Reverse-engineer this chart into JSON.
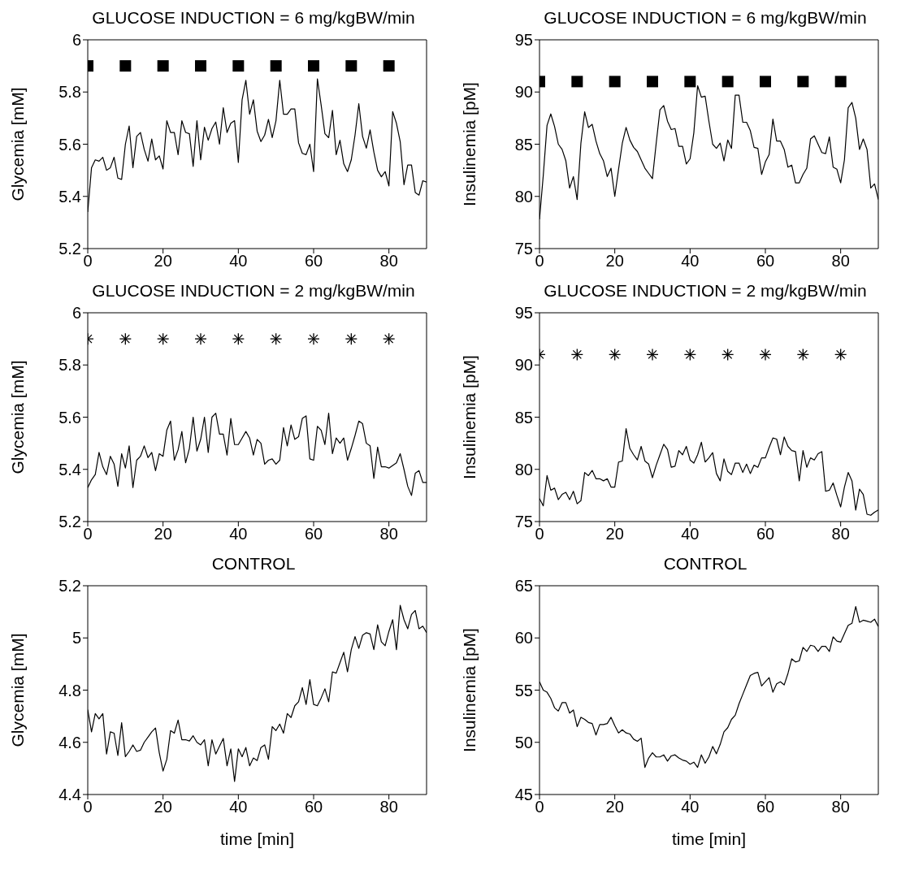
{
  "chart_data": [
    {
      "type": "line",
      "title": "GLUCOSE INDUCTION = 6 mg/kgBW/min",
      "ylabel": "Glycemia [mM]",
      "xlim": [
        0,
        90
      ],
      "xticks": [
        0,
        20,
        40,
        60,
        80
      ],
      "ylim": [
        5.2,
        6
      ],
      "yticks": [
        5.2,
        5.4,
        5.6,
        5.8,
        6
      ],
      "x": [
        0,
        1,
        2,
        3,
        4,
        5,
        6,
        7,
        8,
        9,
        10,
        11,
        12,
        13,
        14,
        15,
        16,
        17,
        18,
        19,
        20,
        21,
        22,
        23,
        24,
        25,
        26,
        27,
        28,
        29,
        30,
        31,
        32,
        33,
        34,
        35,
        36,
        37,
        38,
        39,
        40,
        41,
        42,
        43,
        44,
        45,
        46,
        47,
        48,
        49,
        50,
        51,
        52,
        53,
        54,
        55,
        56,
        57,
        58,
        59,
        60,
        61,
        62,
        63,
        64,
        65,
        66,
        67,
        68,
        69,
        70,
        71,
        72,
        73,
        74,
        75,
        76,
        77,
        78,
        79,
        80,
        81,
        82,
        83,
        84,
        85,
        86,
        87,
        88,
        89,
        90
      ],
      "series": [
        {
          "color": "#000000",
          "values": [
            5.34,
            5.51,
            5.54,
            5.535,
            5.55,
            5.5,
            5.51,
            5.55,
            5.47,
            5.465,
            5.6,
            5.67,
            5.51,
            5.63,
            5.645,
            5.58,
            5.535,
            5.62,
            5.54,
            5.555,
            5.505,
            5.69,
            5.645,
            5.645,
            5.56,
            5.69,
            5.645,
            5.64,
            5.515,
            5.69,
            5.54,
            5.665,
            5.615,
            5.66,
            5.685,
            5.6,
            5.74,
            5.645,
            5.68,
            5.69,
            5.53,
            5.77,
            5.845,
            5.715,
            5.77,
            5.65,
            5.61,
            5.635,
            5.695,
            5.625,
            5.69,
            5.845,
            5.715,
            5.715,
            5.735,
            5.735,
            5.605,
            5.565,
            5.56,
            5.6,
            5.495,
            5.85,
            5.75,
            5.64,
            5.625,
            5.73,
            5.56,
            5.615,
            5.525,
            5.495,
            5.54,
            5.635,
            5.755,
            5.63,
            5.585,
            5.655,
            5.57,
            5.5,
            5.475,
            5.495,
            5.44,
            5.725,
            5.68,
            5.61,
            5.445,
            5.52,
            5.52,
            5.415,
            5.405,
            5.46,
            5.455
          ]
        },
        {
          "type": "scatter",
          "marker": "square",
          "color": "#000000",
          "x": [
            0,
            10,
            20,
            30,
            40,
            50,
            60,
            70,
            80
          ],
          "values": [
            5.9,
            5.9,
            5.9,
            5.9,
            5.9,
            5.9,
            5.9,
            5.9,
            5.9
          ]
        }
      ]
    },
    {
      "type": "line",
      "title": "GLUCOSE INDUCTION = 6 mg/kgBW/min",
      "ylabel": "Insulinemia [pM]",
      "xlim": [
        0,
        90
      ],
      "xticks": [
        0,
        20,
        40,
        60,
        80
      ],
      "ylim": [
        75,
        95
      ],
      "yticks": [
        75,
        80,
        85,
        90,
        95
      ],
      "x": [
        0,
        1,
        2,
        3,
        4,
        5,
        6,
        7,
        8,
        9,
        10,
        11,
        12,
        13,
        14,
        15,
        16,
        17,
        18,
        19,
        20,
        21,
        22,
        23,
        24,
        25,
        26,
        27,
        28,
        29,
        30,
        31,
        32,
        33,
        34,
        35,
        36,
        37,
        38,
        39,
        40,
        41,
        42,
        43,
        44,
        45,
        46,
        47,
        48,
        49,
        50,
        51,
        52,
        53,
        54,
        55,
        56,
        57,
        58,
        59,
        60,
        61,
        62,
        63,
        64,
        65,
        66,
        67,
        68,
        69,
        70,
        71,
        72,
        73,
        74,
        75,
        76,
        77,
        78,
        79,
        80,
        81,
        82,
        83,
        84,
        85,
        86,
        87,
        88,
        89,
        90
      ],
      "series": [
        {
          "color": "#000000",
          "values": [
            77.8,
            82,
            86.8,
            87.9,
            86.7,
            85,
            84.5,
            83.4,
            80.8,
            81.9,
            79.7,
            85.1,
            88.1,
            86.6,
            86.9,
            85.3,
            84.1,
            83.4,
            81.9,
            82.7,
            80,
            82.6,
            85.1,
            86.6,
            85.4,
            84.7,
            84.3,
            83.5,
            82.7,
            82.2,
            81.7,
            85.1,
            88.3,
            88.7,
            87.2,
            86.4,
            86.5,
            84.8,
            84.8,
            83.1,
            83.6,
            86.1,
            90.6,
            89.5,
            89.6,
            87.2,
            85,
            84.6,
            85.1,
            83.4,
            85.4,
            84.6,
            89.7,
            89.7,
            87.1,
            87.1,
            86.3,
            84.7,
            84.6,
            82.1,
            83.3,
            84,
            87.4,
            85.3,
            85.3,
            84.5,
            82.8,
            83,
            81.3,
            81.3,
            82.1,
            82.7,
            85.5,
            85.8,
            85,
            84.2,
            84.1,
            85.7,
            82.8,
            82.6,
            81.3,
            83.5,
            88.5,
            89,
            87.5,
            84.5,
            85.5,
            84.5,
            80.8,
            81.2,
            79.7
          ]
        },
        {
          "type": "scatter",
          "marker": "square",
          "color": "#000000",
          "x": [
            0,
            10,
            20,
            30,
            40,
            50,
            60,
            70,
            80
          ],
          "values": [
            91,
            91,
            91,
            91,
            91,
            91,
            91,
            91,
            91
          ]
        }
      ]
    },
    {
      "type": "line",
      "title": "GLUCOSE INDUCTION = 2 mg/kgBW/min",
      "ylabel": "Glycemia [mM]",
      "xlim": [
        0,
        90
      ],
      "xticks": [
        0,
        20,
        40,
        60,
        80
      ],
      "ylim": [
        5.2,
        6
      ],
      "yticks": [
        5.2,
        5.4,
        5.6,
        5.8,
        6
      ],
      "x": [
        0,
        1,
        2,
        3,
        4,
        5,
        6,
        7,
        8,
        9,
        10,
        11,
        12,
        13,
        14,
        15,
        16,
        17,
        18,
        19,
        20,
        21,
        22,
        23,
        24,
        25,
        26,
        27,
        28,
        29,
        30,
        31,
        32,
        33,
        34,
        35,
        36,
        37,
        38,
        39,
        40,
        41,
        42,
        43,
        44,
        45,
        46,
        47,
        48,
        49,
        50,
        51,
        52,
        53,
        54,
        55,
        56,
        57,
        58,
        59,
        60,
        61,
        62,
        63,
        64,
        65,
        66,
        67,
        68,
        69,
        70,
        71,
        72,
        73,
        74,
        75,
        76,
        77,
        78,
        79,
        80,
        81,
        82,
        83,
        84,
        85,
        86,
        87,
        88,
        89,
        90
      ],
      "series": [
        {
          "color": "#000000",
          "values": [
            5.33,
            5.36,
            5.38,
            5.465,
            5.41,
            5.38,
            5.45,
            5.42,
            5.335,
            5.46,
            5.405,
            5.49,
            5.33,
            5.435,
            5.45,
            5.49,
            5.445,
            5.465,
            5.395,
            5.46,
            5.45,
            5.55,
            5.585,
            5.435,
            5.475,
            5.545,
            5.425,
            5.48,
            5.6,
            5.47,
            5.515,
            5.6,
            5.465,
            5.6,
            5.615,
            5.535,
            5.535,
            5.455,
            5.595,
            5.495,
            5.495,
            5.52,
            5.545,
            5.52,
            5.455,
            5.515,
            5.5,
            5.42,
            5.435,
            5.44,
            5.42,
            5.435,
            5.56,
            5.49,
            5.57,
            5.515,
            5.525,
            5.595,
            5.605,
            5.44,
            5.435,
            5.565,
            5.55,
            5.495,
            5.615,
            5.46,
            5.52,
            5.5,
            5.52,
            5.435,
            5.48,
            5.53,
            5.585,
            5.575,
            5.5,
            5.49,
            5.365,
            5.485,
            5.41,
            5.41,
            5.405,
            5.415,
            5.425,
            5.46,
            5.4,
            5.335,
            5.3,
            5.385,
            5.395,
            5.35,
            5.35
          ]
        },
        {
          "type": "scatter",
          "marker": "cross",
          "color": "#000000",
          "x": [
            0,
            10,
            20,
            30,
            40,
            50,
            60,
            70,
            80
          ],
          "values": [
            5.9,
            5.9,
            5.9,
            5.9,
            5.9,
            5.9,
            5.9,
            5.9,
            5.9
          ]
        }
      ]
    },
    {
      "type": "line",
      "title": "GLUCOSE INDUCTION = 2 mg/kgBW/min",
      "ylabel": "Insulinemia [pM]",
      "xlim": [
        0,
        90
      ],
      "xticks": [
        0,
        20,
        40,
        60,
        80
      ],
      "ylim": [
        75,
        95
      ],
      "yticks": [
        75,
        80,
        85,
        90,
        95
      ],
      "x": [
        0,
        1,
        2,
        3,
        4,
        5,
        6,
        7,
        8,
        9,
        10,
        11,
        12,
        13,
        14,
        15,
        16,
        17,
        18,
        19,
        20,
        21,
        22,
        23,
        24,
        25,
        26,
        27,
        28,
        29,
        30,
        31,
        32,
        33,
        34,
        35,
        36,
        37,
        38,
        39,
        40,
        41,
        42,
        43,
        44,
        45,
        46,
        47,
        48,
        49,
        50,
        51,
        52,
        53,
        54,
        55,
        56,
        57,
        58,
        59,
        60,
        61,
        62,
        63,
        64,
        65,
        66,
        67,
        68,
        69,
        70,
        71,
        72,
        73,
        74,
        75,
        76,
        77,
        78,
        79,
        80,
        81,
        82,
        83,
        84,
        85,
        86,
        87,
        88,
        89,
        90
      ],
      "series": [
        {
          "color": "#000000",
          "values": [
            77.2,
            76.5,
            79.4,
            78,
            78.2,
            77.1,
            77.6,
            77.8,
            77.1,
            77.9,
            76.7,
            77,
            79.7,
            79.4,
            79.9,
            79.1,
            79.1,
            78.9,
            79.1,
            78.3,
            78.3,
            80.7,
            80.8,
            83.9,
            82,
            81.4,
            80.9,
            82.2,
            80.8,
            80.5,
            79.2,
            80.4,
            81.4,
            82.4,
            81.9,
            80.2,
            80.3,
            81.8,
            81.4,
            82.2,
            80.9,
            80.6,
            81.4,
            82.6,
            80.7,
            81.1,
            81.6,
            79.6,
            78.9,
            81,
            79.8,
            79.5,
            80.6,
            80.6,
            79.7,
            80.5,
            79.6,
            80.4,
            80.2,
            81.1,
            81.1,
            82.1,
            83,
            82.9,
            81.4,
            83.1,
            82.2,
            81.8,
            81.7,
            78.9,
            81.8,
            80.2,
            81.1,
            80.9,
            81.5,
            81.7,
            77.9,
            78,
            78.7,
            77.5,
            76.4,
            78.3,
            79.7,
            78.9,
            76.1,
            78.1,
            77.6,
            75.7,
            75.6,
            75.9,
            76.1
          ]
        },
        {
          "type": "scatter",
          "marker": "cross",
          "color": "#000000",
          "x": [
            0,
            10,
            20,
            30,
            40,
            50,
            60,
            70,
            80
          ],
          "values": [
            91,
            91,
            91,
            91,
            91,
            91,
            91,
            91,
            91
          ]
        }
      ]
    },
    {
      "type": "line",
      "title": "CONTROL",
      "ylabel": "Glycemia [mM]",
      "xlabel": "time [min]",
      "xlim": [
        0,
        90
      ],
      "xticks": [
        0,
        20,
        40,
        60,
        80
      ],
      "ylim": [
        4.4,
        5.2
      ],
      "yticks": [
        4.4,
        4.6,
        4.8,
        5,
        5.2
      ],
      "x": [
        0,
        1,
        2,
        3,
        4,
        5,
        6,
        7,
        8,
        9,
        10,
        11,
        12,
        13,
        14,
        15,
        16,
        17,
        18,
        19,
        20,
        21,
        22,
        23,
        24,
        25,
        26,
        27,
        28,
        29,
        30,
        31,
        32,
        33,
        34,
        35,
        36,
        37,
        38,
        39,
        40,
        41,
        42,
        43,
        44,
        45,
        46,
        47,
        48,
        49,
        50,
        51,
        52,
        53,
        54,
        55,
        56,
        57,
        58,
        59,
        60,
        61,
        62,
        63,
        64,
        65,
        66,
        67,
        68,
        69,
        70,
        71,
        72,
        73,
        74,
        75,
        76,
        77,
        78,
        79,
        80,
        81,
        82,
        83,
        84,
        85,
        86,
        87,
        88,
        89,
        90
      ],
      "series": [
        {
          "color": "#000000",
          "values": [
            4.725,
            4.64,
            4.71,
            4.69,
            4.71,
            4.555,
            4.64,
            4.635,
            4.55,
            4.675,
            4.545,
            4.565,
            4.59,
            4.565,
            4.57,
            4.6,
            4.62,
            4.64,
            4.655,
            4.56,
            4.49,
            4.535,
            4.645,
            4.635,
            4.685,
            4.61,
            4.61,
            4.605,
            4.625,
            4.6,
            4.59,
            4.61,
            4.51,
            4.61,
            4.555,
            4.585,
            4.615,
            4.51,
            4.575,
            4.45,
            4.575,
            4.545,
            4.58,
            4.51,
            4.54,
            4.53,
            4.58,
            4.59,
            4.535,
            4.66,
            4.645,
            4.67,
            4.635,
            4.71,
            4.695,
            4.74,
            4.755,
            4.81,
            4.745,
            4.84,
            4.745,
            4.74,
            4.77,
            4.805,
            4.755,
            4.87,
            4.865,
            4.905,
            4.945,
            4.87,
            4.955,
            5.005,
            4.96,
            5.01,
            5.02,
            5.015,
            4.955,
            5.05,
            4.985,
            4.97,
            5.025,
            5.07,
            4.955,
            5.125,
            5.07,
            5.035,
            5.09,
            5.105,
            5.035,
            5.045,
            5.02
          ]
        }
      ]
    },
    {
      "type": "line",
      "title": "CONTROL",
      "ylabel": "Insulinemia [pM]",
      "xlabel": "time [min]",
      "xlim": [
        0,
        90
      ],
      "xticks": [
        0,
        20,
        40,
        60,
        80
      ],
      "ylim": [
        45,
        65
      ],
      "yticks": [
        45,
        50,
        55,
        60,
        65
      ],
      "x": [
        0,
        1,
        2,
        3,
        4,
        5,
        6,
        7,
        8,
        9,
        10,
        11,
        12,
        13,
        14,
        15,
        16,
        17,
        18,
        19,
        20,
        21,
        22,
        23,
        24,
        25,
        26,
        27,
        28,
        29,
        30,
        31,
        32,
        33,
        34,
        35,
        36,
        37,
        38,
        39,
        40,
        41,
        42,
        43,
        44,
        45,
        46,
        47,
        48,
        49,
        50,
        51,
        52,
        53,
        54,
        55,
        56,
        57,
        58,
        59,
        60,
        61,
        62,
        63,
        64,
        65,
        66,
        67,
        68,
        69,
        70,
        71,
        72,
        73,
        74,
        75,
        76,
        77,
        78,
        79,
        80,
        81,
        82,
        83,
        84,
        85,
        86,
        87,
        88,
        89,
        90
      ],
      "series": [
        {
          "color": "#000000",
          "values": [
            55.8,
            55,
            54.8,
            54.2,
            53.3,
            53,
            53.8,
            53.8,
            52.8,
            53.1,
            51.5,
            52.4,
            52.2,
            51.9,
            51.8,
            50.7,
            51.7,
            51.7,
            51.8,
            52.4,
            51.6,
            50.9,
            51.2,
            50.9,
            50.8,
            50.3,
            50.1,
            50.4,
            47.6,
            48.5,
            49,
            48.6,
            48.6,
            48.8,
            48.2,
            48.7,
            48.8,
            48.5,
            48.3,
            48.2,
            47.9,
            48.1,
            47.6,
            48.8,
            48,
            48.6,
            49.6,
            48.9,
            49.8,
            51,
            51.4,
            52.2,
            52.6,
            53.7,
            54.6,
            55.5,
            56.4,
            56.6,
            56.7,
            55.4,
            55.8,
            56.2,
            54.8,
            55.6,
            55.8,
            55.5,
            56.6,
            58,
            57.7,
            57.8,
            59.1,
            58.7,
            59.3,
            59.2,
            58.7,
            59.2,
            59.2,
            58.7,
            60.1,
            59.7,
            59.6,
            60.4,
            61.2,
            61.4,
            63,
            61.5,
            61.7,
            61.6,
            61.5,
            61.8,
            61.1
          ]
        }
      ]
    }
  ]
}
